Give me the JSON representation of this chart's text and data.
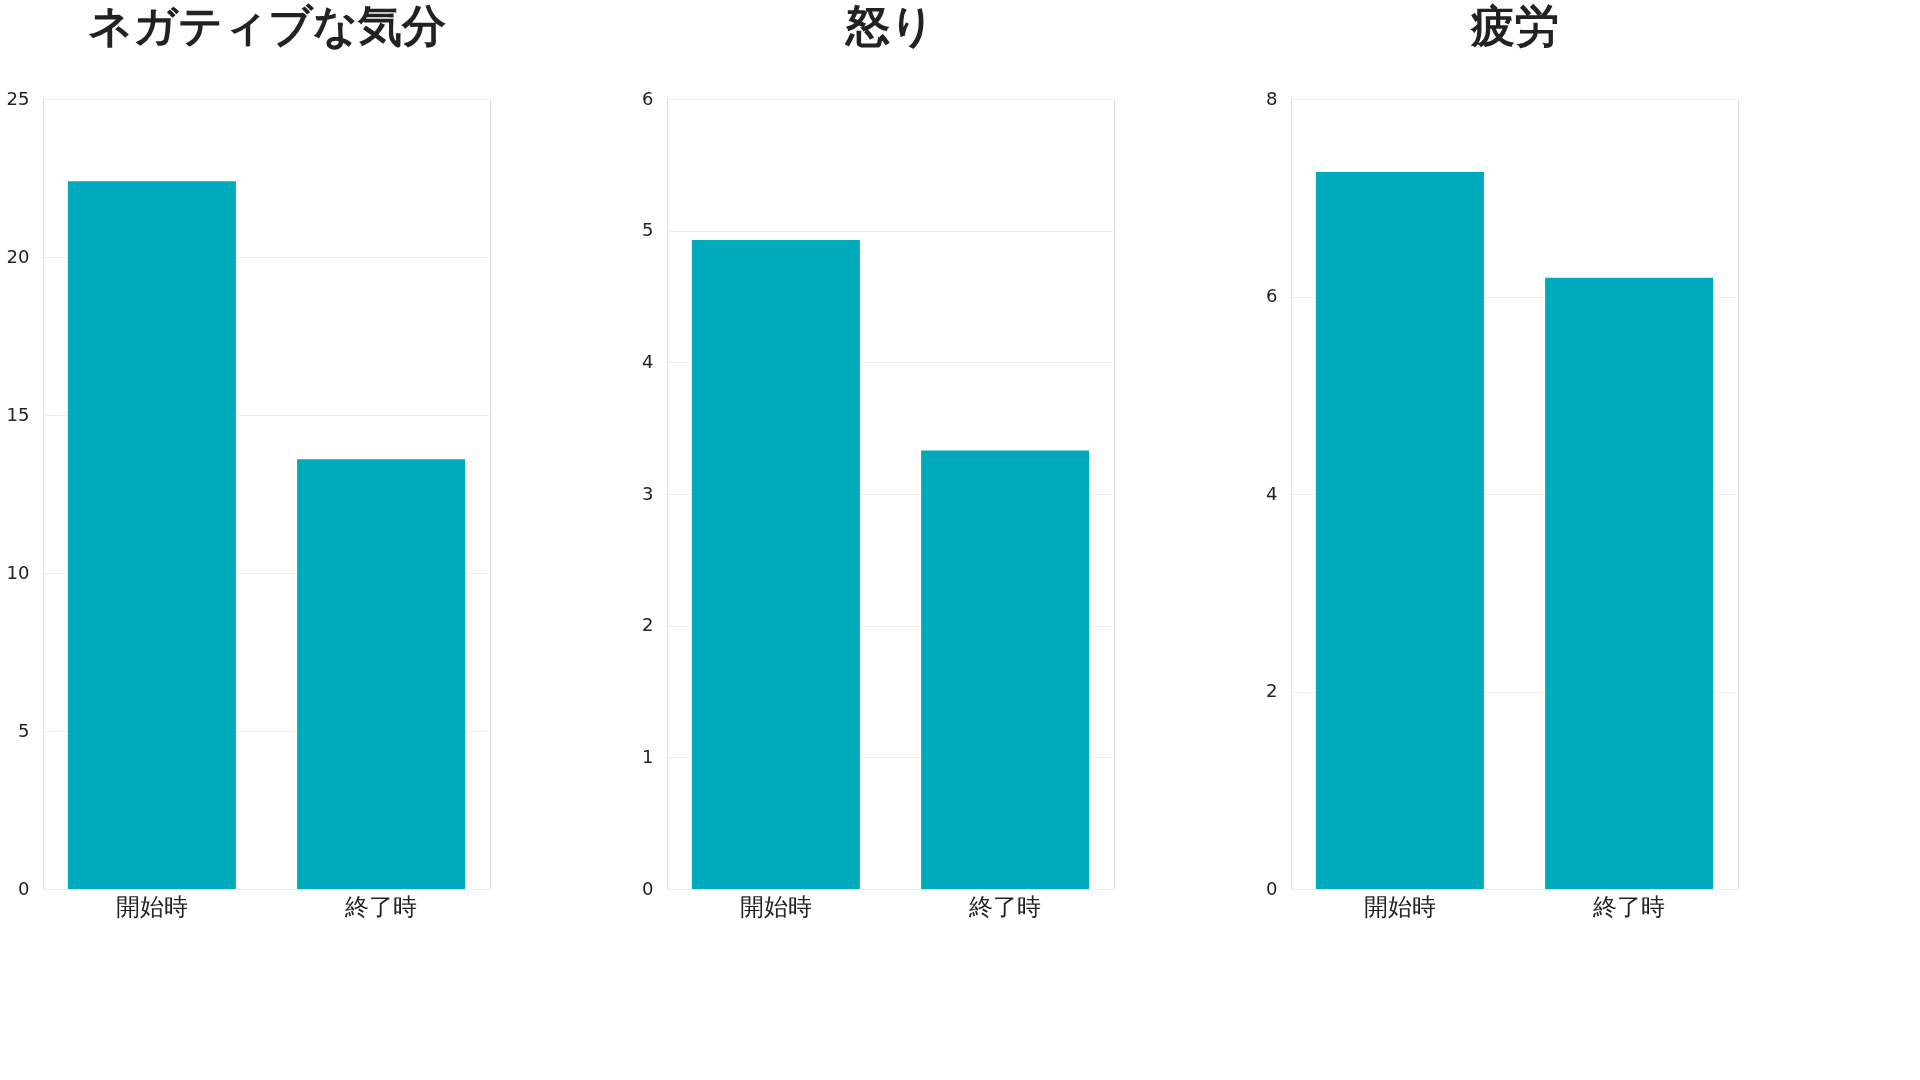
{
  "chart_data": [
    {
      "type": "bar",
      "title": "ネガティブな気分",
      "categories": [
        "開始時",
        "終了時"
      ],
      "values": [
        22.4,
        13.6
      ],
      "color": "#00aabd",
      "ylim": [
        0,
        25
      ],
      "yticks": [
        0,
        5,
        10,
        15,
        20,
        25
      ],
      "grid": "y"
    },
    {
      "type": "bar",
      "title": "怒り",
      "categories": [
        "開始時",
        "終了時"
      ],
      "values": [
        4.93,
        3.33
      ],
      "color": "#00aabd",
      "ylim": [
        0,
        6
      ],
      "yticks": [
        0,
        1,
        2,
        3,
        4,
        5,
        6
      ],
      "grid": "y"
    },
    {
      "type": "bar",
      "title": "疲労",
      "categories": [
        "開始時",
        "終了時"
      ],
      "values": [
        7.26,
        6.19
      ],
      "color": "#00aabd",
      "ylim": [
        0,
        8
      ],
      "yticks": [
        0,
        2,
        4,
        6,
        8
      ],
      "grid": "y"
    }
  ]
}
